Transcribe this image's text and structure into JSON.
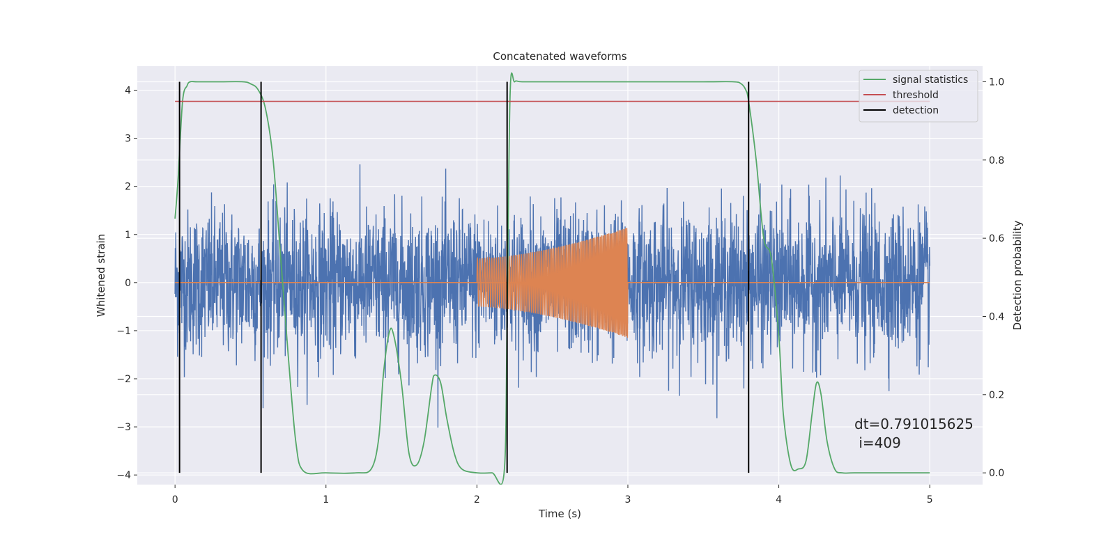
{
  "chart_data": {
    "type": "line",
    "title": "Concatenated waveforms",
    "xlabel": "Time (s)",
    "ylabel": "Whitened strain",
    "y2label": "Detection probability",
    "xlim": [
      -0.25,
      5.35
    ],
    "ylim": [
      -4.2,
      4.5
    ],
    "y2lim": [
      -0.03,
      1.04
    ],
    "xticks": [
      0,
      1,
      2,
      3,
      4,
      5
    ],
    "yticks": [
      -4,
      -3,
      -2,
      -1,
      0,
      1,
      2,
      3,
      4
    ],
    "y2ticks": [
      0.0,
      0.2,
      0.4,
      0.6,
      0.8,
      1.0
    ],
    "y2ticklabels": [
      "0.0",
      "0.2",
      "0.4",
      "0.6",
      "0.8",
      "1.0"
    ],
    "grid": true,
    "legend_position": "top-right",
    "annotation_lines": [
      "dt=0.791015625",
      " i=409"
    ],
    "series": [
      {
        "name": "",
        "color": "#4c72b0",
        "kind": "noise",
        "x_range": [
          0,
          5
        ],
        "amplitude_std": 0.75,
        "axis": "left"
      },
      {
        "name": "",
        "color": "#dd8452",
        "kind": "chirp",
        "flat": {
          "x": [
            0,
            5
          ],
          "y": 0
        },
        "chirp_range": [
          2,
          3
        ],
        "amp_start": 0.5,
        "amp_end": 1.15,
        "axis": "left"
      },
      {
        "name": "signal statistics",
        "color": "#55a868",
        "kind": "line",
        "axis": "right",
        "x": [
          0,
          0.02,
          0.05,
          0.08,
          0.1,
          0.15,
          0.3,
          0.45,
          0.5,
          0.55,
          0.6,
          0.65,
          0.7,
          0.75,
          0.8,
          0.85,
          1.0,
          1.2,
          1.3,
          1.35,
          1.38,
          1.42,
          1.45,
          1.5,
          1.55,
          1.6,
          1.65,
          1.7,
          1.72,
          1.76,
          1.8,
          1.85,
          1.9,
          2.0,
          2.1,
          2.18,
          2.2,
          2.22,
          2.25,
          2.3,
          2.5,
          3.0,
          3.5,
          3.7,
          3.75,
          3.78,
          3.8,
          3.85,
          3.9,
          3.95,
          4.0,
          4.03,
          4.08,
          4.13,
          4.18,
          4.22,
          4.25,
          4.28,
          4.32,
          4.37,
          4.42,
          4.5,
          4.8,
          5.0
        ],
        "y": [
          0.65,
          0.75,
          0.95,
          0.99,
          1.0,
          1.0,
          1.0,
          1.0,
          0.995,
          0.98,
          0.93,
          0.8,
          0.55,
          0.3,
          0.08,
          0.005,
          0.0,
          0.0,
          0.01,
          0.09,
          0.25,
          0.36,
          0.35,
          0.23,
          0.05,
          0.02,
          0.08,
          0.22,
          0.25,
          0.23,
          0.14,
          0.05,
          0.01,
          0.0,
          0.0,
          0.0,
          0.4,
          0.97,
          1.0,
          1.0,
          1.0,
          1.0,
          1.0,
          1.0,
          0.995,
          0.98,
          0.95,
          0.8,
          0.6,
          0.55,
          0.35,
          0.15,
          0.02,
          0.01,
          0.03,
          0.15,
          0.23,
          0.2,
          0.08,
          0.01,
          0.0,
          0.0,
          0.0,
          0.0
        ]
      },
      {
        "name": "threshold",
        "color": "#c44e52",
        "kind": "hline",
        "axis": "right",
        "y": 0.95,
        "x_range": [
          0,
          5
        ]
      },
      {
        "name": "detection",
        "color": "#000000",
        "kind": "vlines",
        "axis": "right",
        "x": [
          0.03,
          0.57,
          2.2,
          3.8
        ],
        "y_range": [
          0.0,
          1.0
        ]
      }
    ]
  }
}
